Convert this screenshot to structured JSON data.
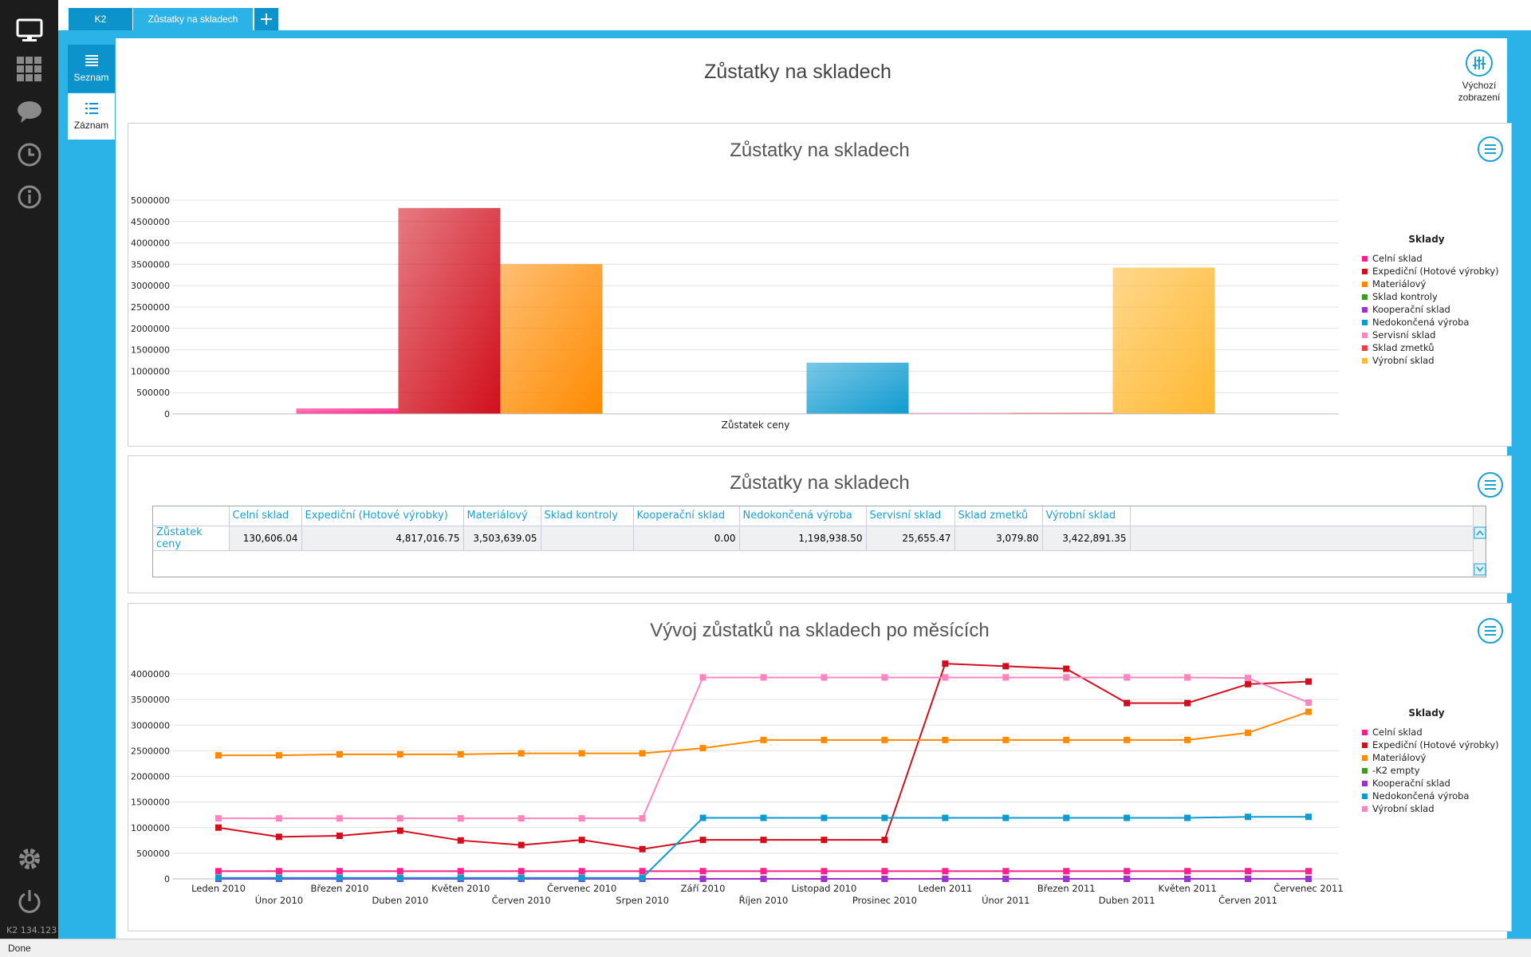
{
  "app": {
    "version": "K2 134.123",
    "status": "Done"
  },
  "tabs": [
    {
      "label": "K2"
    },
    {
      "label": "Zůstatky na skladech"
    }
  ],
  "views": {
    "seznam": "Seznam",
    "zaznam": "Záznam"
  },
  "page": {
    "title": "Zůstatky na skladech",
    "default_view": "Výchozí zobrazení"
  },
  "colors": {
    "celni": "#ff1f8a",
    "expedicni": "#d10f1c",
    "material": "#ff8a00",
    "kontroly": "#3a9b1f",
    "kooperacni": "#9b33cc",
    "nedokoncena": "#0f9bd0",
    "servisni": "#ff85c0",
    "zmetku": "#f03c3c",
    "vyrobni": "#ffb830"
  },
  "chart_data": [
    {
      "type": "bar",
      "title": "Zůstatky na skladech",
      "categories": [
        "Zůstatek ceny"
      ],
      "legend_title": "Sklady",
      "legend_position": "right",
      "ylim": [
        0,
        5000000
      ],
      "yticks": [
        "5000000",
        "4500000",
        "4000000",
        "3500000",
        "3000000",
        "2500000",
        "2000000",
        "1500000",
        "1000000",
        "500000",
        "0"
      ],
      "grid": true,
      "series": [
        {
          "name": "Celní sklad",
          "values": [
            130606.04
          ],
          "color": "#ff1f8a"
        },
        {
          "name": "Expediční (Hotové výrobky)",
          "values": [
            4817016.75
          ],
          "color": "#d10f1c"
        },
        {
          "name": "Materiálový",
          "values": [
            3503639.05
          ],
          "color": "#ff8a00"
        },
        {
          "name": "Sklad kontroly",
          "values": [
            0
          ],
          "color": "#3a9b1f"
        },
        {
          "name": "Kooperační sklad",
          "values": [
            0
          ],
          "color": "#9b33cc"
        },
        {
          "name": "Nedokončená výroba",
          "values": [
            1198938.5
          ],
          "color": "#0f9bd0"
        },
        {
          "name": "Servisní sklad",
          "values": [
            25655.47
          ],
          "color": "#ff85c0"
        },
        {
          "name": "Sklad zmetků",
          "values": [
            3079.8
          ],
          "color": "#f03c3c"
        },
        {
          "name": "Výrobní sklad",
          "values": [
            3422891.35
          ],
          "color": "#ffb830"
        }
      ]
    },
    {
      "type": "table",
      "title": "Zůstatky na skladech",
      "columns": [
        "",
        "Celní sklad",
        "Expediční (Hotové výrobky)",
        "Materiálový",
        "Sklad kontroly",
        "Kooperační sklad",
        "Nedokončená výroba",
        "Servisní sklad",
        "Sklad zmetků",
        "Výrobní sklad"
      ],
      "rows": [
        [
          "Zůstatek ceny",
          "130,606.04",
          "4,817,016.75",
          "3,503,639.05",
          "",
          "0.00",
          "1,198,938.50",
          "25,655.47",
          "3,079.80",
          "3,422,891.35"
        ]
      ]
    },
    {
      "type": "line",
      "title": "Vývoj zůstatků na skladech po měsících",
      "legend_title": "Sklady",
      "legend_position": "right",
      "ylim": [
        0,
        4000000
      ],
      "yticks": [
        "4000000",
        "3500000",
        "3000000",
        "2500000",
        "2000000",
        "1500000",
        "1000000",
        "500000",
        "0"
      ],
      "grid": true,
      "x": [
        "Leden 2010",
        "Únor 2010",
        "Březen 2010",
        "Duben 2010",
        "Květen 2010",
        "Červen 2010",
        "Červenec 2010",
        "Srpen 2010",
        "Září 2010",
        "Říjen 2010",
        "Listopad 2010",
        "Prosinec 2010",
        "Leden 2011",
        "Únor 2011",
        "Březen 2011",
        "Duben 2011",
        "Květen 2011",
        "Červen 2011",
        "Červenec 2011"
      ],
      "series": [
        {
          "name": "Celní sklad",
          "color": "#ff1f8a",
          "values": [
            150000,
            150000,
            150000,
            150000,
            150000,
            150000,
            150000,
            150000,
            150000,
            150000,
            150000,
            150000,
            150000,
            150000,
            150000,
            150000,
            150000,
            150000,
            150000
          ]
        },
        {
          "name": "Expediční (Hotové výrobky)",
          "color": "#d10f1c",
          "values": [
            1000000,
            820000,
            840000,
            940000,
            750000,
            660000,
            760000,
            580000,
            760000,
            760000,
            760000,
            760000,
            4200000,
            4150000,
            4100000,
            3430000,
            3430000,
            3800000,
            3850000
          ]
        },
        {
          "name": "Materiálový",
          "color": "#ff8a00",
          "values": [
            2410000,
            2410000,
            2430000,
            2430000,
            2430000,
            2450000,
            2450000,
            2450000,
            2550000,
            2710000,
            2710000,
            2710000,
            2710000,
            2710000,
            2710000,
            2710000,
            2710000,
            2850000,
            3260000
          ]
        },
        {
          "name": "-K2 empty",
          "color": "#3a9b1f",
          "values": [
            0,
            0,
            0,
            0,
            0,
            0,
            0,
            0,
            0,
            0,
            0,
            0,
            0,
            0,
            0,
            0,
            0,
            0,
            0
          ]
        },
        {
          "name": "Kooperační sklad",
          "color": "#9b33cc",
          "values": [
            0,
            0,
            0,
            0,
            0,
            0,
            0,
            0,
            0,
            0,
            0,
            0,
            0,
            0,
            0,
            0,
            0,
            0,
            0
          ]
        },
        {
          "name": "Nedokončená výroba",
          "color": "#0f9bd0",
          "values": [
            20000,
            20000,
            20000,
            20000,
            20000,
            20000,
            20000,
            20000,
            1190000,
            1190000,
            1190000,
            1190000,
            1190000,
            1190000,
            1190000,
            1190000,
            1190000,
            1210000,
            1210000
          ]
        },
        {
          "name": "Výrobní sklad",
          "color": "#ff85c0",
          "values": [
            1180000,
            1180000,
            1180000,
            1180000,
            1180000,
            1180000,
            1180000,
            1180000,
            3930000,
            3930000,
            3930000,
            3930000,
            3930000,
            3930000,
            3930000,
            3930000,
            3930000,
            3920000,
            3440000
          ]
        }
      ]
    }
  ]
}
